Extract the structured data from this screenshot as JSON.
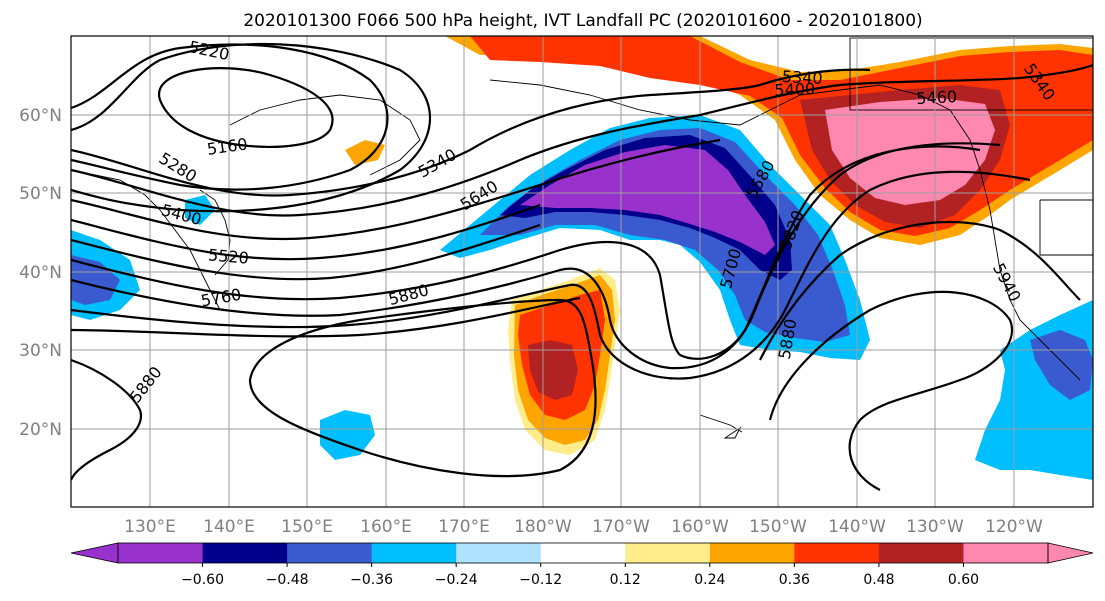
{
  "title": "2020101300 F066 500 hPa height, IVT Landfall PC (2020101600 - 2020101800)",
  "lat_labels": [
    "60°N",
    "50°N",
    "40°N",
    "30°N",
    "20°N"
  ],
  "lon_labels": [
    "130°E",
    "140°E",
    "150°E",
    "160°E",
    "170°E",
    "180°W",
    "170°W",
    "160°W",
    "150°W",
    "140°W",
    "130°W",
    "120°W"
  ],
  "colorbar": {
    "colors": [
      "#9932CC",
      "#00008B",
      "#3A5BCF",
      "#00BFFF",
      "#B0E2FF",
      "#FFFFFF",
      "#FFEC8B",
      "#FFA500",
      "#FF3300",
      "#B22222",
      "#FF88B0"
    ],
    "tick_labels": [
      "-0.60",
      "-0.48",
      "-0.36",
      "-0.24",
      "-0.12",
      "0.12",
      "0.24",
      "0.36",
      "0.48",
      "0.60"
    ],
    "min_color": "#9932CC",
    "max_color": "#FF88B0"
  },
  "contour_labels": [
    {
      "text": "5220",
      "role": "height-contour"
    },
    {
      "text": "5160",
      "role": "height-contour"
    },
    {
      "text": "5280",
      "role": "height-contour"
    },
    {
      "text": "5340",
      "role": "height-contour"
    },
    {
      "text": "5400",
      "role": "height-contour"
    },
    {
      "text": "5520",
      "role": "height-contour"
    },
    {
      "text": "5640",
      "role": "height-contour"
    },
    {
      "text": "5760",
      "role": "height-contour"
    },
    {
      "text": "5880",
      "role": "height-contour"
    },
    {
      "text": "5880",
      "role": "height-contour"
    },
    {
      "text": "5340",
      "role": "height-contour"
    },
    {
      "text": "5400",
      "role": "height-contour"
    },
    {
      "text": "5460",
      "role": "height-contour"
    },
    {
      "text": "5340",
      "role": "height-contour"
    },
    {
      "text": "5580",
      "role": "height-contour"
    },
    {
      "text": "5700",
      "role": "height-contour"
    },
    {
      "text": "5820",
      "role": "height-contour"
    },
    {
      "text": "5880",
      "role": "height-contour"
    },
    {
      "text": "5940",
      "role": "height-contour"
    }
  ]
}
